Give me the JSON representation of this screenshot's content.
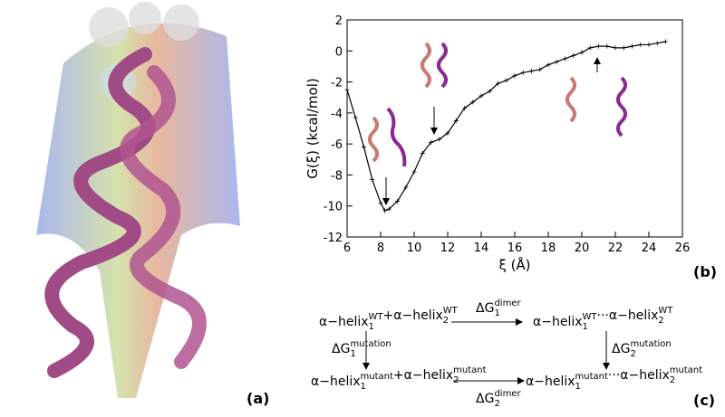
{
  "chart_data": {
    "type": "line",
    "xlabel": "ξ (Å)",
    "ylabel": "G(ξ) (kcal/mol)",
    "xlim": [
      6,
      26
    ],
    "xticks": [
      6,
      8,
      10,
      12,
      14,
      16,
      18,
      20,
      22,
      24,
      26
    ],
    "ylim": [
      -12,
      2
    ],
    "yticks": [
      -12,
      -10,
      -8,
      -6,
      -4,
      -2,
      0,
      2
    ],
    "series": [
      {
        "color": "#000000",
        "x": [
          6,
          6.5,
          7,
          7.5,
          8,
          8.25,
          8.5,
          9,
          9.5,
          10,
          10.5,
          11,
          11.5,
          12,
          12.5,
          13,
          13.5,
          14,
          14.5,
          15,
          15.5,
          16,
          16.5,
          17,
          17.5,
          18,
          18.5,
          19,
          19.5,
          20,
          20.5,
          21,
          21.5,
          22,
          22.5,
          23,
          23.5,
          24,
          24.5,
          25
        ],
        "values": [
          -2.5,
          -4.3,
          -6.2,
          -8.3,
          -9.8,
          -10.3,
          -10.2,
          -9.7,
          -8.8,
          -7.8,
          -6.6,
          -5.9,
          -5.7,
          -5.3,
          -4.5,
          -3.7,
          -3.3,
          -2.9,
          -2.6,
          -2.1,
          -1.9,
          -1.6,
          -1.4,
          -1.3,
          -1.2,
          -0.9,
          -0.7,
          -0.5,
          -0.3,
          -0.1,
          0.2,
          0.3,
          0.3,
          0.2,
          0.2,
          0.3,
          0.4,
          0.4,
          0.5,
          0.6
        ]
      }
    ]
  },
  "panels": {
    "a": "(a)",
    "b": "(b)",
    "c": "(c)"
  },
  "cycle": {
    "wt_separate": [
      {
        "base": "α−helix",
        "sub": "1",
        "sup": "WT"
      },
      {
        "base": "+"
      },
      {
        "base": "α−helix",
        "sub": "2",
        "sup": "WT"
      }
    ],
    "wt_dimer": [
      {
        "base": "α−helix",
        "sub": "1",
        "sup": "WT"
      },
      {
        "base": "···"
      },
      {
        "base": "α−helix",
        "sub": "2",
        "sup": "WT"
      }
    ],
    "mutant_separate": [
      {
        "base": "α−helix",
        "sub": "1",
        "sup": "mutant"
      },
      {
        "base": "+"
      },
      {
        "base": "α−helix",
        "sub": "2",
        "sup": "mutant"
      }
    ],
    "mutant_dimer": [
      {
        "base": "α−helix",
        "sub": "1",
        "sup": "mutant"
      },
      {
        "base": "···"
      },
      {
        "base": "α−helix",
        "sub": "2",
        "sup": "mutant"
      }
    ],
    "dg_dimer_1": [
      {
        "base": "ΔG",
        "sub": "1",
        "sup": "dimer"
      }
    ],
    "dg_dimer_2": [
      {
        "base": "ΔG",
        "sub": "2",
        "sup": "dimer"
      }
    ],
    "dg_mutation_1": [
      {
        "base": "ΔG",
        "sub": "1",
        "sup": "mutation"
      }
    ],
    "dg_mutation_2": [
      {
        "base": "ΔG",
        "sub": "2",
        "sup": "mutation"
      }
    ]
  }
}
